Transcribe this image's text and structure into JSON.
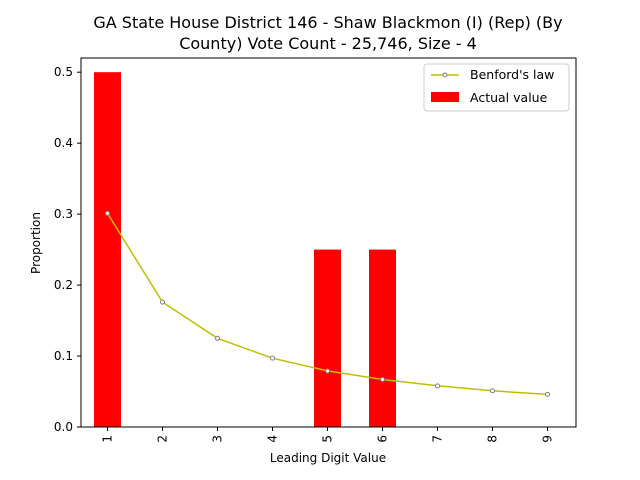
{
  "chart_data": {
    "type": "bar",
    "title_lines": [
      "GA State House District 146 - Shaw Blackmon (I) (Rep) (By",
      "County) Vote Count - 25,746, Size - 4"
    ],
    "xlabel": "Leading Digit Value",
    "ylabel": "Proportion",
    "categories": [
      "1",
      "2",
      "3",
      "4",
      "5",
      "6",
      "7",
      "8",
      "9"
    ],
    "ylim": [
      0,
      0.52
    ],
    "yticks": [
      "0.0",
      "0.1",
      "0.2",
      "0.3",
      "0.4",
      "0.5"
    ],
    "ytick_values": [
      0,
      0.1,
      0.2,
      0.3,
      0.4,
      0.5
    ],
    "series": [
      {
        "name": "Actual value",
        "kind": "bar",
        "color": "#ff0000",
        "values": [
          0.5,
          0,
          0,
          0,
          0.25,
          0.25,
          0,
          0,
          0
        ]
      },
      {
        "name": "Benford's law",
        "kind": "line",
        "color": "#bfbf00",
        "values": [
          0.301,
          0.176,
          0.125,
          0.097,
          0.079,
          0.067,
          0.058,
          0.051,
          0.046
        ]
      }
    ],
    "legend_position": "top-right",
    "grid": false
  }
}
